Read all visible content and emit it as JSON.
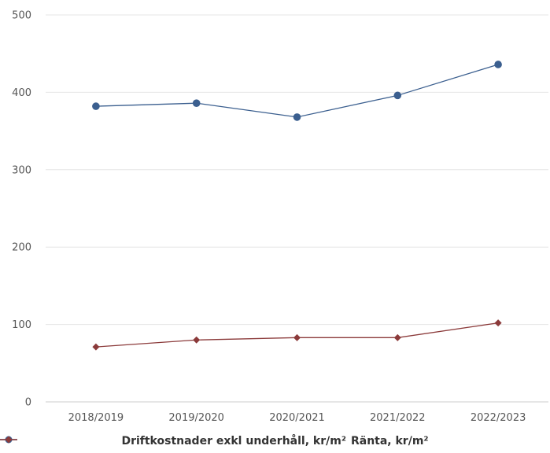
{
  "chart_data": {
    "type": "line",
    "categories": [
      "2018/2019",
      "2019/2020",
      "2020/2021",
      "2021/2022",
      "2022/2023"
    ],
    "series": [
      {
        "name": "Driftkostnader exkl underhåll, kr/m²",
        "values": [
          382,
          386,
          368,
          396,
          436
        ],
        "color": "#3b5f8f",
        "marker": "circle"
      },
      {
        "name": "Ränta, kr/m²",
        "values": [
          71,
          80,
          83,
          83,
          102
        ],
        "color": "#8b3a3a",
        "marker": "diamond"
      }
    ],
    "yticks": [
      "0",
      "100",
      "200",
      "300",
      "400",
      "500"
    ],
    "ylim": [
      0,
      500
    ],
    "grid": true,
    "legend_position": "bottom"
  }
}
